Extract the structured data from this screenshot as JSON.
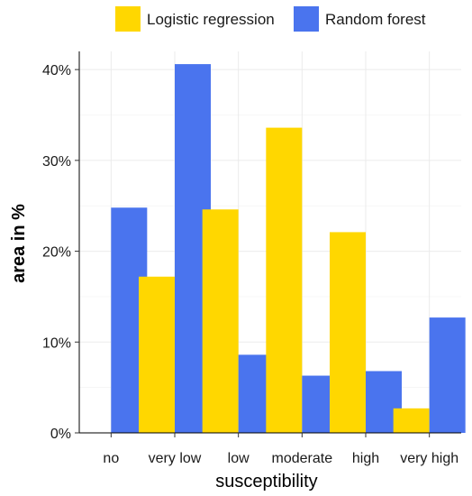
{
  "chart_data": {
    "type": "bar",
    "title": "",
    "xlabel": "susceptibility",
    "ylabel": "area in %",
    "categories": [
      "no",
      "very low",
      "low",
      "moderate",
      "high",
      "very high"
    ],
    "series": [
      {
        "name": "Logistic regression",
        "color": "#FFD700",
        "values": [
          0,
          17.2,
          24.6,
          33.6,
          22.1,
          2.7
        ]
      },
      {
        "name": "Random forest",
        "color": "#4A74EE",
        "values": [
          24.8,
          40.6,
          8.6,
          6.3,
          6.8,
          12.7
        ]
      }
    ],
    "ylim": [
      0,
      42
    ],
    "yticks": [
      0,
      10,
      20,
      30,
      40
    ],
    "ytick_labels": [
      "0%",
      "10%",
      "20%",
      "30%",
      "40%"
    ],
    "grid": true,
    "legend_position": "top"
  }
}
